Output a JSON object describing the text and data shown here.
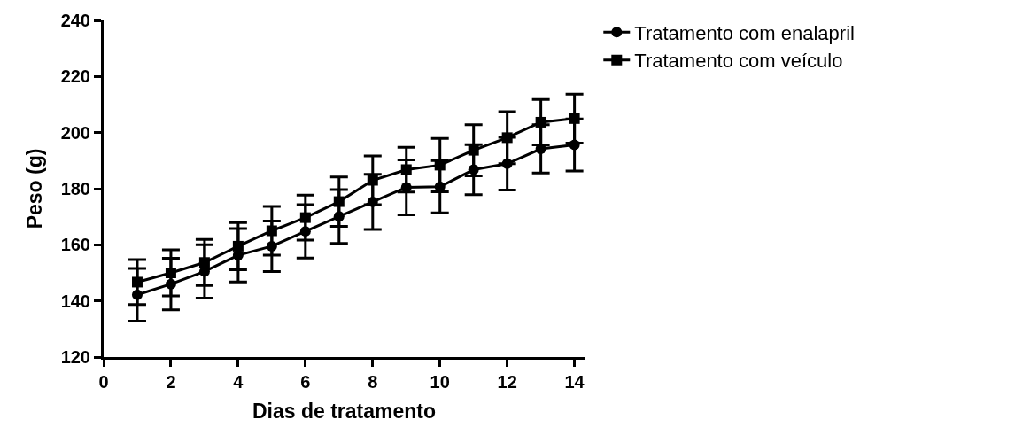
{
  "chart_data": {
    "type": "line",
    "xlabel": "Dias de tratamento",
    "ylabel": "Peso (g)",
    "x": [
      1,
      2,
      3,
      4,
      5,
      6,
      7,
      8,
      9,
      10,
      11,
      12,
      13,
      14
    ],
    "xlim": [
      0,
      14.3
    ],
    "xticks": [
      0,
      2,
      4,
      6,
      8,
      10,
      12,
      14
    ],
    "ylim": [
      120,
      240
    ],
    "yticks": [
      120,
      140,
      160,
      180,
      200,
      220,
      240
    ],
    "legend": "top right",
    "line_style": "solid",
    "series": [
      {
        "name": "Tratamento com enalapril",
        "color": "#000000",
        "marker": "circle",
        "values": [
          142.2,
          146,
          150.5,
          156.3,
          159.5,
          164.8,
          170.1,
          175.3,
          180.5,
          180.7,
          186.8,
          188.9,
          194.2,
          195.6
        ],
        "errors": [
          9.4,
          9.2,
          9.5,
          9.5,
          9,
          9.5,
          9.6,
          9.8,
          9.8,
          9.3,
          8.9,
          9.4,
          8.6,
          9.3
        ]
      },
      {
        "name": "Tratamento com veículo",
        "color": "#000000",
        "marker": "square",
        "values": [
          146.7,
          150,
          153.7,
          159.5,
          165,
          169.7,
          175.4,
          183,
          186.8,
          188.4,
          193.7,
          198.2,
          203.7,
          205
        ],
        "errors": [
          8,
          8.2,
          8.2,
          8.4,
          8.7,
          8,
          8.8,
          8.7,
          8,
          9.5,
          9.1,
          9.3,
          8.1,
          8.7
        ]
      }
    ]
  }
}
